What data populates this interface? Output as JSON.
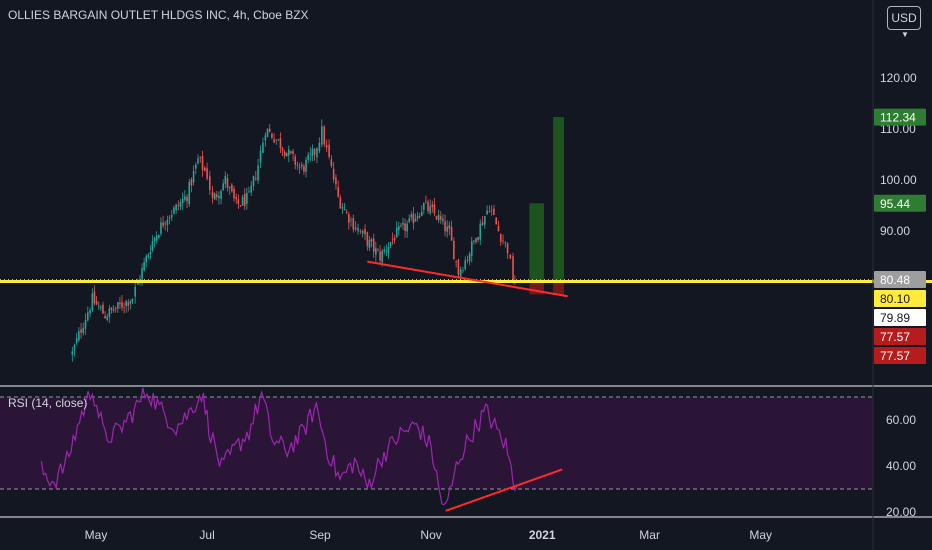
{
  "header": {
    "title": "OLLIES BARGAIN OUTLET HLDGS INC, 4h, Cboe BZX",
    "currency_button": "USD"
  },
  "rsi_panel": {
    "label": "RSI (14, close)"
  },
  "colors": {
    "background": "#131722",
    "up": "#26a69a",
    "down": "#ef5350",
    "support_line": "#ffeb3b",
    "trend_line": "#ff2a2a",
    "rsi_line": "#9c27b0",
    "rsi_band": "#2a1536",
    "target_green": "#1e5a1e",
    "stop_red": "#7a1a1a"
  },
  "price_badges": [
    {
      "label": "112.34",
      "value": 112.34,
      "bg": "#2e7d32",
      "fg": "#ffffff"
    },
    {
      "label": "95.44",
      "value": 95.44,
      "bg": "#2e7d32",
      "fg": "#ffffff"
    },
    {
      "label": "80.48",
      "value": 80.48,
      "bg": "#9e9e9e",
      "fg": "#ffffff"
    },
    {
      "label": "80.10",
      "value": 80.1,
      "bg": "#ffeb3b",
      "fg": "#131722"
    },
    {
      "label": "79.89",
      "value": 79.89,
      "bg": "#ffffff",
      "fg": "#131722"
    },
    {
      "label": "77.57",
      "value": 77.57,
      "bg": "#b71c1c",
      "fg": "#ffffff"
    },
    {
      "label": "77.57",
      "value": 77.57,
      "bg": "#b71c1c",
      "fg": "#ffffff"
    }
  ],
  "chart_data": [
    {
      "type": "candlestick",
      "title": "OLLIES BARGAIN OUTLET HLDGS INC, 4h, Cboe BZX",
      "y_ticks": [
        90,
        100,
        110,
        120
      ],
      "y_tick_labels": [
        "90.00",
        "100.00",
        "110.00",
        "120.00"
      ],
      "ylim": [
        65,
        130
      ],
      "x_ticks": [
        "May",
        "Jul",
        "Sep",
        "Nov",
        "2021",
        "Mar",
        "May"
      ],
      "x_tick_dates": [
        "2020-05-01",
        "2020-07-01",
        "2020-09-01",
        "2020-11-01",
        "2021-01-01",
        "2021-03-01",
        "2021-05-01"
      ],
      "xlim": [
        "2020-04-01",
        "2021-07-01"
      ],
      "price_path": [
        [
          "2020-04-18",
          66.0
        ],
        [
          "2020-04-24",
          72.0
        ],
        [
          "2020-04-29",
          76.5
        ],
        [
          "2020-05-06",
          73.5
        ],
        [
          "2020-05-13",
          75.0
        ],
        [
          "2020-05-21",
          77.0
        ],
        [
          "2020-05-24",
          80.0
        ],
        [
          "2020-06-01",
          88.0
        ],
        [
          "2020-06-08",
          92.5
        ],
        [
          "2020-06-14",
          94.5
        ],
        [
          "2020-06-20",
          97.0
        ],
        [
          "2020-06-26",
          104.0
        ],
        [
          "2020-07-01",
          101.0
        ],
        [
          "2020-07-04",
          96.0
        ],
        [
          "2020-07-11",
          100.0
        ],
        [
          "2020-07-17",
          95.0
        ],
        [
          "2020-07-24",
          96.5
        ],
        [
          "2020-07-29",
          103.0
        ],
        [
          "2020-08-02",
          110.0
        ],
        [
          "2020-08-08",
          108.0
        ],
        [
          "2020-08-16",
          104.5
        ],
        [
          "2020-08-22",
          102.0
        ],
        [
          "2020-08-29",
          105.5
        ],
        [
          "2020-09-02",
          109.5
        ],
        [
          "2020-09-06",
          104.0
        ],
        [
          "2020-09-11",
          96.5
        ],
        [
          "2020-09-18",
          92.0
        ],
        [
          "2020-09-27",
          88.0
        ],
        [
          "2020-10-04",
          85.0
        ],
        [
          "2020-10-12",
          89.0
        ],
        [
          "2020-10-20",
          91.5
        ],
        [
          "2020-10-28",
          95.0
        ],
        [
          "2020-11-04",
          93.0
        ],
        [
          "2020-11-11",
          89.5
        ],
        [
          "2020-11-16",
          82.0
        ],
        [
          "2020-11-21",
          85.0
        ],
        [
          "2020-11-28",
          91.0
        ],
        [
          "2020-12-03",
          95.0
        ],
        [
          "2020-12-08",
          90.0
        ],
        [
          "2020-12-13",
          86.5
        ],
        [
          "2020-12-16",
          80.5
        ],
        [
          "2020-12-18",
          79.9
        ]
      ],
      "support_line": {
        "price": 80.1
      },
      "resistance_dotted": {
        "price": 80.48
      },
      "trend_line": {
        "start": [
          "2020-09-27",
          84.0
        ],
        "end": [
          "2021-01-15",
          77.2
        ]
      },
      "positions": [
        {
          "start": "2020-12-25",
          "end": "2021-01-02",
          "target": 95.44,
          "entry": 80.48,
          "stop": 77.57
        },
        {
          "start": "2021-01-07",
          "end": "2021-01-13",
          "target": 112.34,
          "entry": 80.48,
          "stop": 77.57
        }
      ]
    },
    {
      "type": "line",
      "title": "RSI (14, close)",
      "y_ticks": [
        20,
        40,
        60
      ],
      "y_tick_labels": [
        "20.00",
        "40.00",
        "60.00"
      ],
      "ylim": [
        19,
        75
      ],
      "overbought": 70,
      "oversold": 30,
      "path": [
        [
          "2020-04-01",
          38.0
        ],
        [
          "2020-04-08",
          33.0
        ],
        [
          "2020-04-15",
          42.0
        ],
        [
          "2020-04-22",
          60.0
        ],
        [
          "2020-04-29",
          74.0
        ],
        [
          "2020-05-06",
          52.0
        ],
        [
          "2020-05-13",
          55.0
        ],
        [
          "2020-05-21",
          63.0
        ],
        [
          "2020-05-29",
          73.0
        ],
        [
          "2020-06-06",
          64.0
        ],
        [
          "2020-06-14",
          57.0
        ],
        [
          "2020-06-21",
          63.0
        ],
        [
          "2020-06-28",
          72.0
        ],
        [
          "2020-07-03",
          54.0
        ],
        [
          "2020-07-09",
          39.0
        ],
        [
          "2020-07-16",
          47.0
        ],
        [
          "2020-07-24",
          55.0
        ],
        [
          "2020-07-31",
          71.0
        ],
        [
          "2020-08-06",
          51.0
        ],
        [
          "2020-08-14",
          47.0
        ],
        [
          "2020-08-22",
          54.0
        ],
        [
          "2020-08-30",
          66.0
        ],
        [
          "2020-09-05",
          47.0
        ],
        [
          "2020-09-12",
          34.0
        ],
        [
          "2020-09-20",
          42.0
        ],
        [
          "2020-09-27",
          31.0
        ],
        [
          "2020-10-05",
          44.0
        ],
        [
          "2020-10-14",
          53.0
        ],
        [
          "2020-10-24",
          58.0
        ],
        [
          "2020-11-01",
          48.0
        ],
        [
          "2020-11-06",
          27.0
        ],
        [
          "2020-11-09",
          21.0
        ],
        [
          "2020-11-16",
          43.0
        ],
        [
          "2020-11-24",
          55.0
        ],
        [
          "2020-12-01",
          64.0
        ],
        [
          "2020-12-06",
          57.0
        ],
        [
          "2020-12-12",
          49.0
        ],
        [
          "2020-12-16",
          35.0
        ],
        [
          "2020-12-18",
          31.0
        ]
      ],
      "trend_line": {
        "start": [
          "2020-11-09",
          20.5
        ],
        "end": [
          "2021-01-12",
          38.5
        ]
      }
    }
  ]
}
